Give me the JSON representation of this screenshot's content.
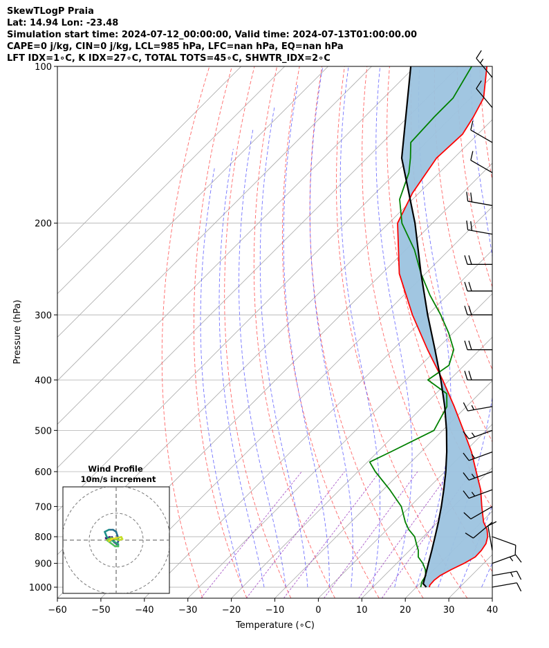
{
  "header": {
    "line1": "SkewTLogP Praia",
    "line2": "Lat: 14.94   Lon: -23.48",
    "line3": "Simulation start time: 2024-07-12_00:00:00, Valid time: 2024-07-13T01:00:00.00",
    "line4": "CAPE=0 j/kg, CIN=0 j/kg, LCL=985 hPa, LFC=nan hPa, EQ=nan hPa",
    "line5": "LFT IDX=1∘C, K IDX=27∘C, TOTAL TOTS=45∘C, SHWTR_IDX=2∘C"
  },
  "chart_data": {
    "type": "line",
    "title": "SkewTLogP Praia",
    "xlabel": "Temperature (∘C)",
    "ylabel": "Pressure (hPa)",
    "xlim": [
      -60,
      40
    ],
    "ylim": [
      1050,
      100
    ],
    "yscale": "log",
    "skew": 45,
    "grid": true,
    "x_ticks": [
      -60,
      -50,
      -40,
      -30,
      -20,
      -10,
      0,
      10,
      20,
      30,
      40
    ],
    "y_ticks": [
      100,
      200,
      300,
      400,
      500,
      600,
      700,
      800,
      900,
      1000
    ],
    "series": [
      {
        "role": "temperature",
        "color": "#ff0000",
        "p": [
          1000,
          990,
          970,
          950,
          925,
          900,
          875,
          850,
          825,
          800,
          775,
          750,
          700,
          650,
          600,
          550,
          500,
          450,
          400,
          350,
          300,
          250,
          200,
          175,
          150,
          135,
          125,
          115,
          100
        ],
        "t": [
          23.0,
          22.6,
          22.5,
          22.8,
          24.0,
          25.5,
          26.6,
          26.5,
          26.0,
          24.8,
          23.0,
          20.5,
          16.5,
          12.4,
          7.2,
          1.6,
          -5.2,
          -12.8,
          -21.6,
          -32.0,
          -43.5,
          -56.0,
          -68.0,
          -71.5,
          -74.0,
          -73.5,
          -75.0,
          -77.0,
          -83.5
        ]
      },
      {
        "role": "dewpoint",
        "color": "#008000",
        "p": [
          1000,
          975,
          950,
          925,
          900,
          875,
          850,
          825,
          800,
          775,
          750,
          700,
          650,
          600,
          575,
          550,
          500,
          450,
          425,
          400,
          375,
          350,
          325,
          300,
          275,
          250,
          225,
          200,
          180,
          160,
          150,
          140,
          125,
          115,
          100
        ],
        "t": [
          21.0,
          20.0,
          19.5,
          18.0,
          16.0,
          13.5,
          12.0,
          10.0,
          8.0,
          5.0,
          2.5,
          -2.0,
          -8.5,
          -16.0,
          -19.5,
          -17.0,
          -12.0,
          -14.5,
          -17.5,
          -25.0,
          -23.5,
          -26.0,
          -31.0,
          -37.0,
          -44.0,
          -51.0,
          -58.0,
          -67.0,
          -73.0,
          -77.0,
          -80.0,
          -83.5,
          -84.0,
          -84.0,
          -87.0
        ]
      },
      {
        "role": "parcel",
        "color": "#000000",
        "p": [
          1000,
          985,
          950,
          900,
          850,
          800,
          750,
          700,
          650,
          600,
          550,
          500,
          450,
          400,
          350,
          300,
          250,
          200,
          150,
          100
        ],
        "t": [
          22.3,
          20.8,
          19.4,
          17.3,
          15.1,
          12.7,
          10.1,
          7.2,
          3.9,
          0.2,
          -4.1,
          -9.1,
          -15.0,
          -22.0,
          -30.3,
          -40.0,
          -51.0,
          -64.0,
          -82.0,
          -101.0
        ]
      }
    ],
    "wind_barbs": [
      {
        "p": 1000,
        "speed_kt": 10,
        "dir_deg": 80
      },
      {
        "p": 950,
        "speed_kt": 15,
        "dir_deg": 80
      },
      {
        "p": 900,
        "speed_kt": 15,
        "dir_deg": 70
      },
      {
        "p": 850,
        "speed_kt": 10,
        "dir_deg": 350
      },
      {
        "p": 800,
        "speed_kt": 10,
        "dir_deg": 110
      },
      {
        "p": 750,
        "speed_kt": 10,
        "dir_deg": 230
      },
      {
        "p": 700,
        "speed_kt": 10,
        "dir_deg": 240
      },
      {
        "p": 650,
        "speed_kt": 15,
        "dir_deg": 250
      },
      {
        "p": 600,
        "speed_kt": 15,
        "dir_deg": 250
      },
      {
        "p": 550,
        "speed_kt": 15,
        "dir_deg": 250
      },
      {
        "p": 500,
        "speed_kt": 15,
        "dir_deg": 250
      },
      {
        "p": 450,
        "speed_kt": 15,
        "dir_deg": 260
      },
      {
        "p": 400,
        "speed_kt": 20,
        "dir_deg": 270
      },
      {
        "p": 350,
        "speed_kt": 20,
        "dir_deg": 270
      },
      {
        "p": 300,
        "speed_kt": 20,
        "dir_deg": 270
      },
      {
        "p": 270,
        "speed_kt": 20,
        "dir_deg": 270
      },
      {
        "p": 240,
        "speed_kt": 20,
        "dir_deg": 270
      },
      {
        "p": 210,
        "speed_kt": 20,
        "dir_deg": 280
      },
      {
        "p": 185,
        "speed_kt": 20,
        "dir_deg": 280
      },
      {
        "p": 160,
        "speed_kt": 10,
        "dir_deg": 300
      },
      {
        "p": 140,
        "speed_kt": 10,
        "dir_deg": 300
      },
      {
        "p": 120,
        "speed_kt": 10,
        "dir_deg": 320
      },
      {
        "p": 105,
        "speed_kt": 15,
        "dir_deg": 320
      }
    ],
    "inset": {
      "title": "Wind Profile",
      "subtitle": "10m/s increment",
      "hodograph_u": [
        -3.0,
        -5.0,
        -4.0,
        -3.0,
        -2.0,
        -1.0,
        0.5,
        1.0,
        1.0,
        0.5,
        0.0,
        -1.5,
        -3.5,
        -5.5,
        -4.5,
        -2.5,
        -0.5,
        1.0,
        1.0,
        -0.5,
        -2.5,
        -4.5,
        -2.5,
        -0.5,
        1.5,
        3.0,
        2.5,
        0.0,
        -2.0,
        -3.5
      ],
      "hodograph_v": [
        1.5,
        1.0,
        0.0,
        -0.5,
        1.5,
        -1.0,
        -2.0,
        -0.5,
        1.0,
        2.5,
        4.0,
        5.0,
        5.0,
        4.0,
        1.5,
        0.0,
        -1.0,
        -2.0,
        -3.0,
        -3.0,
        -1.5,
        0.0,
        1.0,
        0.5,
        0.0,
        0.5,
        1.5,
        1.0,
        0.5,
        -0.5
      ]
    }
  }
}
